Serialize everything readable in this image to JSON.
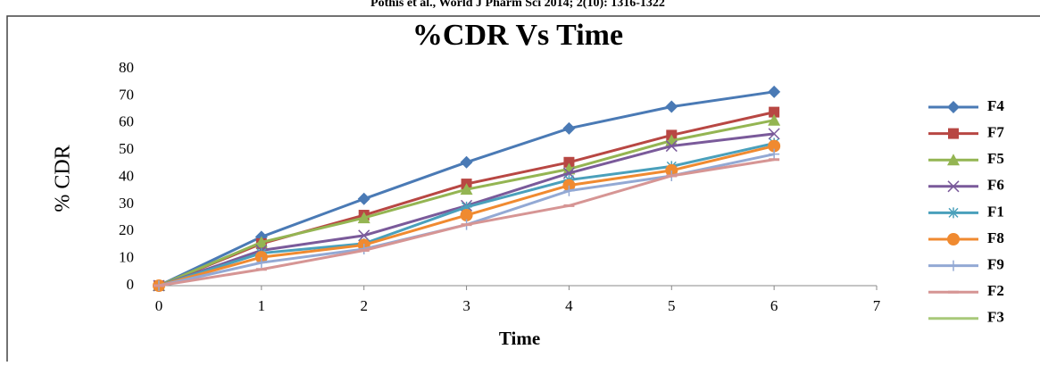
{
  "header": {
    "citation": "Pothis et al., World J Pharm Sci 2014; 2(10): 1316-1322"
  },
  "chart_data": {
    "type": "line",
    "title": "%CDR Vs Time",
    "x_label": "Time",
    "y_label": "% CDR",
    "x": [
      0,
      1,
      2,
      3,
      4,
      5,
      6
    ],
    "xlim": [
      0,
      7
    ],
    "xticks": [
      0,
      1,
      2,
      3,
      4,
      5,
      6,
      7
    ],
    "ylim": [
      0,
      80
    ],
    "yticks": [
      0,
      10,
      20,
      30,
      40,
      50,
      60,
      70,
      80
    ],
    "legend": "right",
    "series": [
      {
        "name": "F4",
        "color": "#4a7ab5",
        "marker": "diamond",
        "values": [
          0,
          18,
          32,
          45.5,
          58,
          66,
          71.5
        ]
      },
      {
        "name": "F7",
        "color": "#b84743",
        "marker": "square",
        "values": [
          0,
          15.5,
          26,
          37.5,
          45.5,
          55.5,
          64
        ]
      },
      {
        "name": "F5",
        "color": "#94b552",
        "marker": "triangle",
        "values": [
          0,
          16,
          25,
          35.5,
          43,
          53.5,
          61
        ]
      },
      {
        "name": "F6",
        "color": "#7a5a9a",
        "marker": "x",
        "values": [
          0,
          13,
          18.5,
          29.5,
          41.5,
          51.5,
          56
        ]
      },
      {
        "name": "F1",
        "color": "#4aa0bb",
        "marker": "star",
        "values": [
          0,
          12,
          15.5,
          29,
          39,
          44,
          52.5
        ]
      },
      {
        "name": "F8",
        "color": "#f08a30",
        "marker": "circle",
        "values": [
          0,
          10.5,
          15,
          26,
          37,
          42.5,
          51.5
        ]
      },
      {
        "name": "F9",
        "color": "#93a9d4",
        "marker": "plus",
        "values": [
          0,
          8.5,
          13.5,
          22.5,
          35,
          40.5,
          48.5
        ]
      },
      {
        "name": "F2",
        "color": "#d69594",
        "marker": "dash",
        "values": [
          0,
          6,
          13,
          22.5,
          29.5,
          40.5,
          46.5
        ]
      },
      {
        "name": "F3",
        "color": "#a8c97a",
        "marker": "none",
        "values": [
          null,
          null,
          null,
          null,
          null,
          null,
          null
        ]
      }
    ]
  }
}
